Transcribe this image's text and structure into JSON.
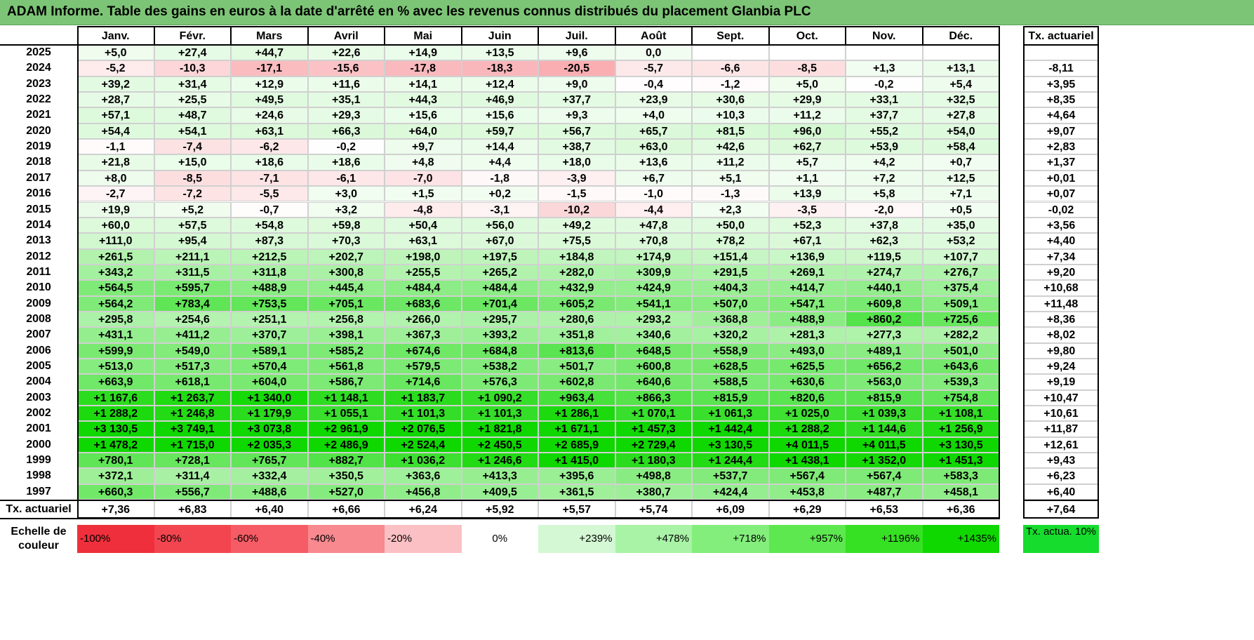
{
  "title": "ADAM Informe. Table des gains en euros à la date d'arrêté en % avec les revenus connus distribués du placement Glanbia PLC",
  "chart_data": {
    "type": "table",
    "title": "ADAM Informe. Table des gains en euros à la date d'arrêté en % avec les revenus connus distribués du placement Glanbia PLC",
    "columns": [
      "Janv.",
      "Févr.",
      "Mars",
      "Avril",
      "Mai",
      "Juin",
      "Juil.",
      "Août",
      "Sept.",
      "Oct.",
      "Nov.",
      "Déc."
    ],
    "rate_header": "Tx. actuariel",
    "rows": [
      {
        "year": "2025",
        "values": [
          "+5,0",
          "+27,4",
          "+44,7",
          "+22,6",
          "+14,9",
          "+13,5",
          "+9,6",
          "0,0",
          "",
          "",
          "",
          ""
        ],
        "rate": ""
      },
      {
        "year": "2024",
        "values": [
          "-5,2",
          "-10,3",
          "-17,1",
          "-15,6",
          "-17,8",
          "-18,3",
          "-20,5",
          "-5,7",
          "-6,6",
          "-8,5",
          "+1,3",
          "+13,1"
        ],
        "rate": "-8,11"
      },
      {
        "year": "2023",
        "values": [
          "+39,2",
          "+31,4",
          "+12,9",
          "+11,6",
          "+14,1",
          "+12,4",
          "+9,0",
          "-0,4",
          "-1,2",
          "+5,0",
          "-0,2",
          "+5,4"
        ],
        "rate": "+3,95"
      },
      {
        "year": "2022",
        "values": [
          "+28,7",
          "+25,5",
          "+49,5",
          "+35,1",
          "+44,3",
          "+46,9",
          "+37,7",
          "+23,9",
          "+30,6",
          "+29,9",
          "+33,1",
          "+32,5"
        ],
        "rate": "+8,35"
      },
      {
        "year": "2021",
        "values": [
          "+57,1",
          "+48,7",
          "+24,6",
          "+29,3",
          "+15,6",
          "+15,6",
          "+9,3",
          "+4,0",
          "+10,3",
          "+11,2",
          "+37,7",
          "+27,8"
        ],
        "rate": "+4,64"
      },
      {
        "year": "2020",
        "values": [
          "+54,4",
          "+54,1",
          "+63,1",
          "+66,3",
          "+64,0",
          "+59,7",
          "+56,7",
          "+65,7",
          "+81,5",
          "+96,0",
          "+55,2",
          "+54,0"
        ],
        "rate": "+9,07"
      },
      {
        "year": "2019",
        "values": [
          "-1,1",
          "-7,4",
          "-6,2",
          "-0,2",
          "+9,7",
          "+14,4",
          "+38,7",
          "+63,0",
          "+42,6",
          "+62,7",
          "+53,9",
          "+58,4"
        ],
        "rate": "+2,83"
      },
      {
        "year": "2018",
        "values": [
          "+21,8",
          "+15,0",
          "+18,6",
          "+18,6",
          "+4,8",
          "+4,4",
          "+18,0",
          "+13,6",
          "+11,2",
          "+5,7",
          "+4,2",
          "+0,7"
        ],
        "rate": "+1,37"
      },
      {
        "year": "2017",
        "values": [
          "+8,0",
          "-8,5",
          "-7,1",
          "-6,1",
          "-7,0",
          "-1,8",
          "-3,9",
          "+6,7",
          "+5,1",
          "+1,1",
          "+7,2",
          "+12,5"
        ],
        "rate": "+0,01"
      },
      {
        "year": "2016",
        "values": [
          "-2,7",
          "-7,2",
          "-5,5",
          "+3,0",
          "+1,5",
          "+0,2",
          "-1,5",
          "-1,0",
          "-1,3",
          "+13,9",
          "+5,8",
          "+7,1"
        ],
        "rate": "+0,07"
      },
      {
        "year": "2015",
        "values": [
          "+19,9",
          "+5,2",
          "-0,7",
          "+3,2",
          "-4,8",
          "-3,1",
          "-10,2",
          "-4,4",
          "+2,3",
          "-3,5",
          "-2,0",
          "+0,5"
        ],
        "rate": "-0,02"
      },
      {
        "year": "2014",
        "values": [
          "+60,0",
          "+57,5",
          "+54,8",
          "+59,8",
          "+50,4",
          "+56,0",
          "+49,2",
          "+47,8",
          "+50,0",
          "+52,3",
          "+37,8",
          "+35,0"
        ],
        "rate": "+3,56"
      },
      {
        "year": "2013",
        "values": [
          "+111,0",
          "+95,4",
          "+87,3",
          "+70,3",
          "+63,1",
          "+67,0",
          "+75,5",
          "+70,8",
          "+78,2",
          "+67,1",
          "+62,3",
          "+53,2"
        ],
        "rate": "+4,40"
      },
      {
        "year": "2012",
        "values": [
          "+261,5",
          "+211,1",
          "+212,5",
          "+202,7",
          "+198,0",
          "+197,5",
          "+184,8",
          "+174,9",
          "+151,4",
          "+136,9",
          "+119,5",
          "+107,7"
        ],
        "rate": "+7,34"
      },
      {
        "year": "2011",
        "values": [
          "+343,2",
          "+311,5",
          "+311,8",
          "+300,8",
          "+255,5",
          "+265,2",
          "+282,0",
          "+309,9",
          "+291,5",
          "+269,1",
          "+274,7",
          "+276,7"
        ],
        "rate": "+9,20"
      },
      {
        "year": "2010",
        "values": [
          "+564,5",
          "+595,7",
          "+488,9",
          "+445,4",
          "+484,4",
          "+484,4",
          "+432,9",
          "+424,9",
          "+404,3",
          "+414,7",
          "+440,1",
          "+375,4"
        ],
        "rate": "+10,68"
      },
      {
        "year": "2009",
        "values": [
          "+564,2",
          "+783,4",
          "+753,5",
          "+705,1",
          "+683,6",
          "+701,4",
          "+605,2",
          "+541,1",
          "+507,0",
          "+547,1",
          "+609,8",
          "+509,1"
        ],
        "rate": "+11,48"
      },
      {
        "year": "2008",
        "values": [
          "+295,8",
          "+254,6",
          "+251,1",
          "+256,8",
          "+266,0",
          "+295,7",
          "+280,6",
          "+293,2",
          "+368,8",
          "+488,9",
          "+860,2",
          "+725,6"
        ],
        "rate": "+8,36"
      },
      {
        "year": "2007",
        "values": [
          "+431,1",
          "+411,2",
          "+370,7",
          "+398,1",
          "+367,3",
          "+393,2",
          "+351,8",
          "+340,6",
          "+320,2",
          "+281,3",
          "+277,3",
          "+282,2"
        ],
        "rate": "+8,02"
      },
      {
        "year": "2006",
        "values": [
          "+599,9",
          "+549,0",
          "+589,1",
          "+585,2",
          "+674,6",
          "+684,8",
          "+813,6",
          "+648,5",
          "+558,9",
          "+493,0",
          "+489,1",
          "+501,0"
        ],
        "rate": "+9,80"
      },
      {
        "year": "2005",
        "values": [
          "+513,0",
          "+517,3",
          "+570,4",
          "+561,8",
          "+579,5",
          "+538,2",
          "+501,7",
          "+600,8",
          "+628,5",
          "+625,5",
          "+656,2",
          "+643,6"
        ],
        "rate": "+9,24"
      },
      {
        "year": "2004",
        "values": [
          "+663,9",
          "+618,1",
          "+604,0",
          "+586,7",
          "+714,6",
          "+576,3",
          "+602,8",
          "+640,6",
          "+588,5",
          "+630,6",
          "+563,0",
          "+539,3"
        ],
        "rate": "+9,19"
      },
      {
        "year": "2003",
        "values": [
          "+1 167,6",
          "+1 263,7",
          "+1 340,0",
          "+1 148,1",
          "+1 183,7",
          "+1 090,2",
          "+963,4",
          "+866,3",
          "+815,9",
          "+820,6",
          "+815,9",
          "+754,8"
        ],
        "rate": "+10,47"
      },
      {
        "year": "2002",
        "values": [
          "+1 288,2",
          "+1 246,8",
          "+1 179,9",
          "+1 055,1",
          "+1 101,3",
          "+1 101,3",
          "+1 286,1",
          "+1 070,1",
          "+1 061,3",
          "+1 025,0",
          "+1 039,3",
          "+1 108,1"
        ],
        "rate": "+10,61"
      },
      {
        "year": "2001",
        "values": [
          "+3 130,5",
          "+3 749,1",
          "+3 073,8",
          "+2 961,9",
          "+2 076,5",
          "+1 821,8",
          "+1 671,1",
          "+1 457,3",
          "+1 442,4",
          "+1 288,2",
          "+1 144,6",
          "+1 256,9"
        ],
        "rate": "+11,87"
      },
      {
        "year": "2000",
        "values": [
          "+1 478,2",
          "+1 715,0",
          "+2 035,3",
          "+2 486,9",
          "+2 524,4",
          "+2 450,5",
          "+2 685,9",
          "+2 729,4",
          "+3 130,5",
          "+4 011,5",
          "+4 011,5",
          "+3 130,5"
        ],
        "rate": "+12,61"
      },
      {
        "year": "1999",
        "values": [
          "+780,1",
          "+728,1",
          "+765,7",
          "+882,7",
          "+1 036,2",
          "+1 246,6",
          "+1 415,0",
          "+1 180,3",
          "+1 244,4",
          "+1 438,1",
          "+1 352,0",
          "+1 451,3"
        ],
        "rate": "+9,43"
      },
      {
        "year": "1998",
        "values": [
          "+372,1",
          "+311,4",
          "+332,4",
          "+350,5",
          "+363,6",
          "+413,3",
          "+395,6",
          "+498,8",
          "+537,7",
          "+567,4",
          "+567,4",
          "+583,3"
        ],
        "rate": "+6,23"
      },
      {
        "year": "1997",
        "values": [
          "+660,3",
          "+556,7",
          "+488,6",
          "+527,0",
          "+456,8",
          "+409,5",
          "+361,5",
          "+380,7",
          "+424,4",
          "+453,8",
          "+487,7",
          "+458,1"
        ],
        "rate": "+6,40"
      }
    ],
    "footer": {
      "label": "Tx. actuariel",
      "values": [
        "+7,36",
        "+6,83",
        "+6,40",
        "+6,66",
        "+6,24",
        "+5,92",
        "+5,57",
        "+5,74",
        "+6,09",
        "+6,29",
        "+6,53",
        "+6,36"
      ],
      "rate": "+7,64"
    },
    "scale": {
      "label": "Echelle de couleur",
      "items": [
        "-100%",
        "-80%",
        "-60%",
        "-40%",
        "-20%",
        "0%",
        "+239%",
        "+478%",
        "+718%",
        "+957%",
        "+1196%",
        "+1435%"
      ],
      "colors": [
        "#ef2f3b",
        "#f24550",
        "#f55c65",
        "#f7898f",
        "#fbc0c3",
        "#ffffff",
        "#d4f8d4",
        "#a9f3a6",
        "#84ee7c",
        "#5de84f",
        "#36e022",
        "#0fd800"
      ],
      "rate_label": "Tx. actua. 10%",
      "rate_color": "#16dc2e"
    }
  }
}
